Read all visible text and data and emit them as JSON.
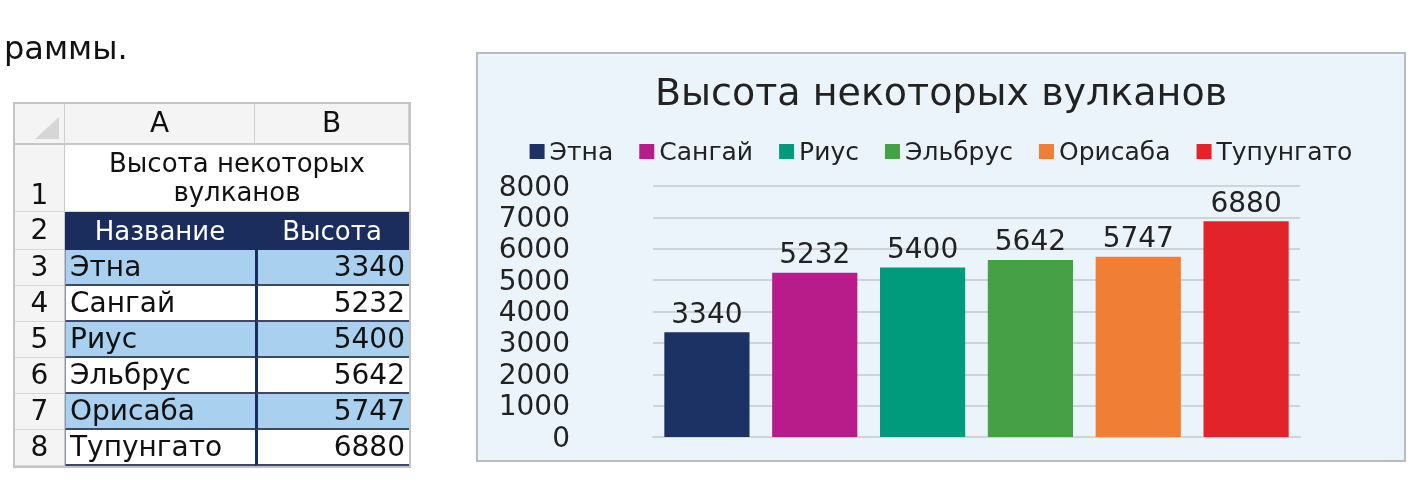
{
  "chart_data": {
    "type": "bar",
    "title": "Высота некоторых вулканов",
    "categories": [
      null,
      null,
      null,
      null,
      null,
      null
    ],
    "series": [
      {
        "name": "Этна",
        "color": "#1d3264",
        "values": [
          3340,
          null,
          null,
          null,
          null,
          null
        ]
      },
      {
        "name": "Сангай",
        "color": "#b81b8a",
        "values": [
          null,
          5232,
          null,
          null,
          null,
          null
        ]
      },
      {
        "name": "Риус",
        "color": "#009b7c",
        "values": [
          null,
          null,
          5400,
          null,
          null,
          null
        ]
      },
      {
        "name": "Эльбрус",
        "color": "#45a046",
        "values": [
          null,
          null,
          null,
          5642,
          null,
          null
        ]
      },
      {
        "name": "Орисаба",
        "color": "#f17e35",
        "values": [
          null,
          null,
          null,
          null,
          5747,
          null
        ]
      },
      {
        "name": "Тупунгато",
        "color": "#e3232a",
        "values": [
          null,
          null,
          null,
          null,
          null,
          6880
        ]
      }
    ],
    "stacked": true,
    "ylim": [
      0,
      8000
    ],
    "yticks": [
      0,
      1000,
      2000,
      3000,
      4000,
      5000,
      6000,
      7000,
      8000
    ],
    "grid": "y",
    "legend": "top",
    "data_labels": true,
    "tick_labels": "y",
    "annotations": [
      "раммы.",
      "A",
      "B",
      "Название",
      "Высота",
      "1",
      "2",
      "3",
      "4",
      "5",
      "6",
      "7",
      "8",
      "3340",
      "5232",
      "5400",
      "5642",
      "5747",
      "6880"
    ]
  }
}
